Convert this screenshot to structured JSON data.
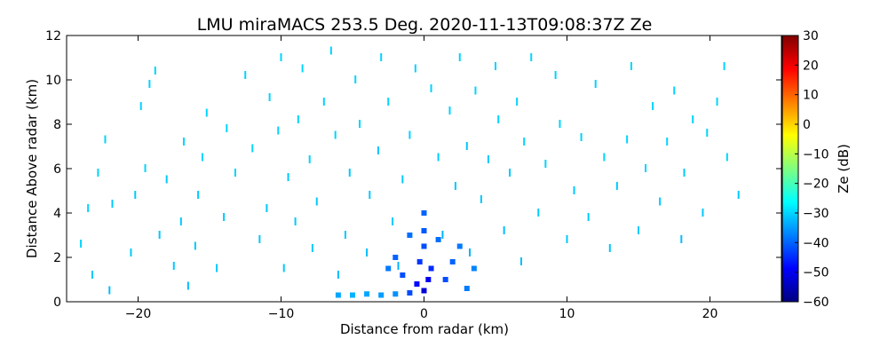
{
  "chart_data": {
    "type": "scatter",
    "title": "LMU miraMACS 253.5 Deg. 2020-11-13T09:08:37Z  Ze",
    "xlabel": "Distance from radar (km)",
    "ylabel": "Distance Above radar  (km)",
    "xlim": [
      -25,
      25
    ],
    "ylim": [
      0,
      12
    ],
    "xticks": [
      -20,
      -10,
      0,
      10,
      20
    ],
    "xtick_labels": [
      "−20",
      "−10",
      "0",
      "10",
      "20"
    ],
    "yticks": [
      0,
      2,
      4,
      6,
      8,
      10,
      12
    ],
    "ytick_labels": [
      "0",
      "2",
      "4",
      "6",
      "8",
      "10",
      "12"
    ],
    "colorbar": {
      "label": "Ze (dB)",
      "range": [
        -60,
        30
      ],
      "ticks": [
        -60,
        -50,
        -40,
        -30,
        -20,
        -10,
        0,
        10,
        20,
        30
      ],
      "tick_labels": [
        "−60",
        "−50",
        "−40",
        "−30",
        "−20",
        "−10",
        "0",
        "10",
        "20",
        "30"
      ],
      "colormap": "jet"
    },
    "grid": false,
    "series": [
      {
        "points": [
          [
            -24.0,
            2.6,
            -30
          ],
          [
            -23.5,
            4.2,
            -30
          ],
          [
            -22.8,
            5.8,
            -30
          ],
          [
            -22.3,
            7.3,
            -30
          ],
          [
            -21.8,
            4.4,
            -31
          ],
          [
            -23.2,
            1.2,
            -31
          ],
          [
            -22.0,
            0.5,
            -32
          ],
          [
            -20.5,
            2.2,
            -31
          ],
          [
            -20.2,
            4.8,
            -31
          ],
          [
            -19.5,
            6.0,
            -30
          ],
          [
            -19.8,
            8.8,
            -30
          ],
          [
            -19.2,
            9.8,
            -30
          ],
          [
            -18.8,
            10.4,
            -30
          ],
          [
            -18.5,
            3.0,
            -31
          ],
          [
            -18.0,
            5.5,
            -31
          ],
          [
            -17.5,
            1.6,
            -31
          ],
          [
            -17.0,
            3.6,
            -31
          ],
          [
            -16.8,
            7.2,
            -30
          ],
          [
            -16.5,
            0.7,
            -32
          ],
          [
            -16.0,
            2.5,
            -31
          ],
          [
            -15.8,
            4.8,
            -31
          ],
          [
            -15.5,
            6.5,
            -30
          ],
          [
            -15.2,
            8.5,
            -30
          ],
          [
            -14.5,
            1.5,
            -31
          ],
          [
            -14.0,
            3.8,
            -31
          ],
          [
            -13.8,
            7.8,
            -30
          ],
          [
            -13.2,
            5.8,
            -30
          ],
          [
            -12.5,
            10.2,
            -30
          ],
          [
            -12.0,
            6.9,
            -30
          ],
          [
            -11.5,
            2.8,
            -31
          ],
          [
            -11.0,
            4.2,
            -31
          ],
          [
            -10.8,
            9.2,
            -30
          ],
          [
            -10.2,
            7.7,
            -30
          ],
          [
            -10.0,
            11.0,
            -30
          ],
          [
            -9.8,
            1.5,
            -31
          ],
          [
            -9.5,
            5.6,
            -31
          ],
          [
            -9.0,
            3.6,
            -31
          ],
          [
            -8.8,
            8.2,
            -30
          ],
          [
            -8.5,
            10.5,
            -30
          ],
          [
            -8.0,
            6.4,
            -30
          ],
          [
            -7.8,
            2.4,
            -31
          ],
          [
            -7.5,
            4.5,
            -31
          ],
          [
            -7.0,
            9.0,
            -30
          ],
          [
            -6.5,
            11.3,
            -30
          ],
          [
            -6.2,
            7.5,
            -30
          ],
          [
            -6.0,
            1.2,
            -32
          ],
          [
            -5.5,
            3.0,
            -31
          ],
          [
            -5.2,
            5.8,
            -31
          ],
          [
            -4.8,
            10.0,
            -30
          ],
          [
            -4.5,
            8.0,
            -30
          ],
          [
            -4.0,
            2.2,
            -32
          ],
          [
            -3.8,
            4.8,
            -31
          ],
          [
            -3.2,
            6.8,
            -31
          ],
          [
            -3.0,
            11.0,
            -30
          ],
          [
            -2.5,
            9.0,
            -30
          ],
          [
            -2.2,
            3.6,
            -31
          ],
          [
            -1.8,
            1.6,
            -33
          ],
          [
            -1.5,
            5.5,
            -31
          ],
          [
            -1.0,
            7.5,
            -30
          ],
          [
            -0.6,
            10.5,
            -30
          ],
          [
            0.5,
            9.6,
            -30
          ],
          [
            1.0,
            6.5,
            -31
          ],
          [
            1.3,
            3.0,
            -33
          ],
          [
            1.8,
            8.6,
            -30
          ],
          [
            2.2,
            5.2,
            -31
          ],
          [
            2.5,
            11.0,
            -30
          ],
          [
            3.0,
            7.0,
            -31
          ],
          [
            3.2,
            2.2,
            -33
          ],
          [
            3.6,
            9.5,
            -30
          ],
          [
            4.0,
            4.6,
            -31
          ],
          [
            4.5,
            6.4,
            -31
          ],
          [
            5.0,
            10.6,
            -30
          ],
          [
            5.2,
            8.2,
            -30
          ],
          [
            5.6,
            3.2,
            -32
          ],
          [
            6.0,
            5.8,
            -31
          ],
          [
            6.5,
            9.0,
            -30
          ],
          [
            6.8,
            1.8,
            -32
          ],
          [
            7.0,
            7.2,
            -30
          ],
          [
            7.5,
            11.0,
            -30
          ],
          [
            8.0,
            4.0,
            -31
          ],
          [
            8.5,
            6.2,
            -30
          ],
          [
            9.2,
            10.2,
            -30
          ],
          [
            9.5,
            8.0,
            -30
          ],
          [
            10.0,
            2.8,
            -31
          ],
          [
            10.5,
            5.0,
            -31
          ],
          [
            11.0,
            7.4,
            -30
          ],
          [
            11.5,
            3.8,
            -31
          ],
          [
            12.0,
            9.8,
            -30
          ],
          [
            12.6,
            6.5,
            -30
          ],
          [
            13.0,
            2.4,
            -31
          ],
          [
            13.5,
            5.2,
            -31
          ],
          [
            14.2,
            7.3,
            -30
          ],
          [
            14.5,
            10.6,
            -30
          ],
          [
            15.0,
            3.2,
            -31
          ],
          [
            15.5,
            6.0,
            -30
          ],
          [
            16.0,
            8.8,
            -30
          ],
          [
            16.5,
            4.5,
            -31
          ],
          [
            17.0,
            7.2,
            -30
          ],
          [
            17.5,
            9.5,
            -30
          ],
          [
            18.0,
            2.8,
            -32
          ],
          [
            18.2,
            5.8,
            -31
          ],
          [
            18.8,
            8.2,
            -30
          ],
          [
            19.5,
            4.0,
            -31
          ],
          [
            19.8,
            7.6,
            -30
          ],
          [
            20.5,
            9.0,
            -30
          ],
          [
            21.0,
            10.6,
            -30
          ],
          [
            22.0,
            4.8,
            -31
          ],
          [
            21.2,
            6.5,
            -30
          ]
        ],
        "core_points": [
          [
            -6.0,
            0.3,
            -34
          ],
          [
            -5.0,
            0.3,
            -33
          ],
          [
            -4.0,
            0.35,
            -34
          ],
          [
            -3.0,
            0.3,
            -35
          ],
          [
            -2.0,
            0.35,
            -36
          ],
          [
            -1.0,
            0.4,
            -42
          ],
          [
            -0.5,
            0.8,
            -48
          ],
          [
            0.0,
            0.5,
            -52
          ],
          [
            0.3,
            1.0,
            -50
          ],
          [
            0.5,
            1.5,
            -45
          ],
          [
            -0.3,
            1.8,
            -44
          ],
          [
            0.0,
            2.5,
            -42
          ],
          [
            0.0,
            3.2,
            -41
          ],
          [
            0.0,
            4.0,
            -40
          ],
          [
            -1.5,
            1.2,
            -42
          ],
          [
            1.5,
            1.0,
            -42
          ],
          [
            2.0,
            1.8,
            -40
          ],
          [
            -2.0,
            2.0,
            -40
          ],
          [
            1.0,
            2.8,
            -39
          ],
          [
            -1.0,
            3.0,
            -39
          ],
          [
            3.0,
            0.6,
            -38
          ],
          [
            2.5,
            2.5,
            -38
          ],
          [
            -2.5,
            1.5,
            -38
          ],
          [
            3.5,
            1.5,
            -37
          ]
        ]
      }
    ]
  }
}
